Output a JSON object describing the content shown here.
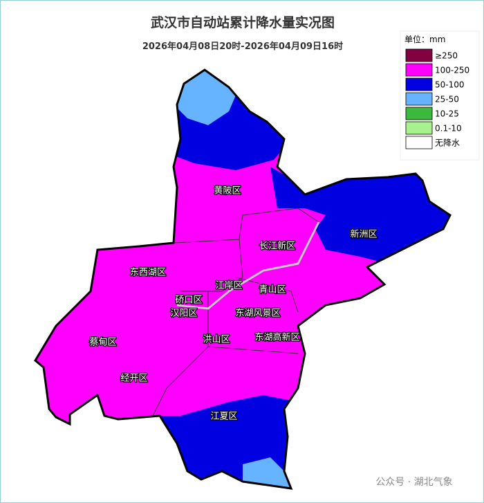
{
  "header": {
    "title": "武汉市自动站累计降水量实况图",
    "subtitle": "2026年04月08日20时-2026年04月09日16时"
  },
  "legend": {
    "unit": "单位：mm",
    "items": [
      {
        "label": "≥250",
        "color": "#800040"
      },
      {
        "label": "100-250",
        "color": "#ff00ff"
      },
      {
        "label": "50-100",
        "color": "#0000e0"
      },
      {
        "label": "25-50",
        "color": "#66b3ff"
      },
      {
        "label": "10-25",
        "color": "#3cb93c"
      },
      {
        "label": "0.1-10",
        "color": "#a6f28c"
      },
      {
        "label": "无降水",
        "color": "#ffffff"
      }
    ]
  },
  "districts": [
    {
      "label": "黄陂区"
    },
    {
      "label": "新洲区"
    },
    {
      "label": "长江新区"
    },
    {
      "label": "东西湖区"
    },
    {
      "label": "江岸区"
    },
    {
      "label": "青山区"
    },
    {
      "label": "硚口区"
    },
    {
      "label": "汉阳区"
    },
    {
      "label": "东湖风景区"
    },
    {
      "label": "蔡甸区"
    },
    {
      "label": "洪山区"
    },
    {
      "label": "东湖高新区"
    },
    {
      "label": "经开区"
    },
    {
      "label": "江夏区"
    }
  ],
  "watermark": "公众号 · 湖北气象"
}
